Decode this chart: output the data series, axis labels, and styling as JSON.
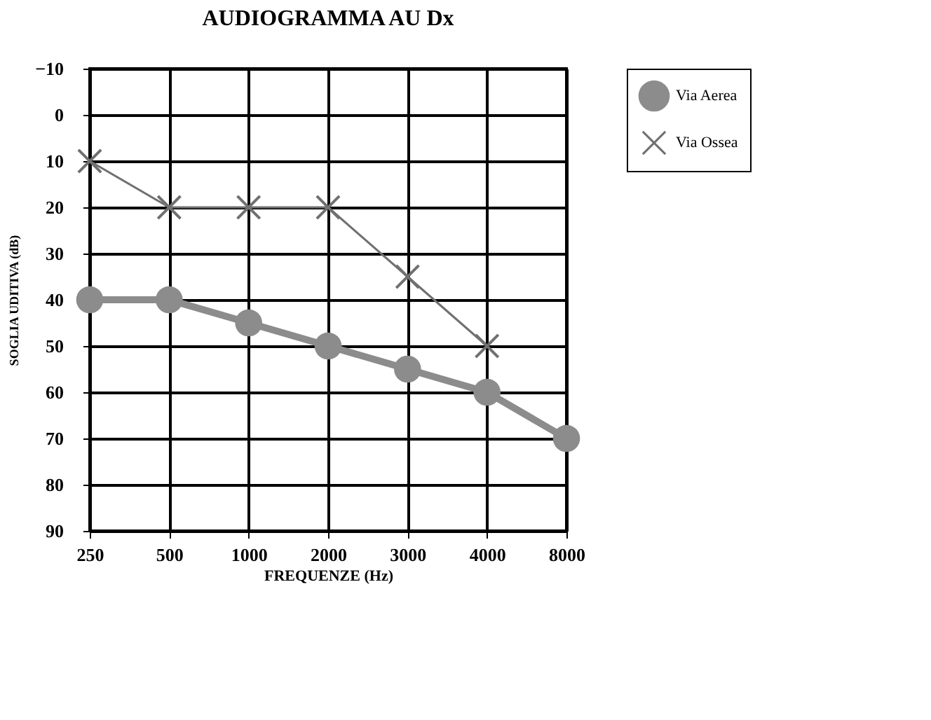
{
  "chart_data": {
    "type": "line",
    "title": "AUDIOGRAMMA AU Dx",
    "xlabel": "FREQUENZE (Hz)",
    "ylabel": "SOGLIA UDITIVA (dB)",
    "categories": [
      "250",
      "500",
      "1000",
      "2000",
      "3000",
      "4000",
      "8000"
    ],
    "series": [
      {
        "name": "Via Aerea",
        "color": "#8c8c8c",
        "marker": "circle",
        "values": [
          40,
          40,
          45,
          50,
          55,
          60,
          70
        ]
      },
      {
        "name": "Via Ossea",
        "color": "#707070",
        "marker": "cross",
        "values": [
          10,
          20,
          20,
          20,
          35,
          50,
          null
        ]
      }
    ],
    "ylim": [
      90,
      -10
    ],
    "yticks": [
      -10,
      0,
      10,
      20,
      30,
      40,
      50,
      60,
      70,
      80,
      90
    ],
    "grid": true,
    "legend": "right"
  }
}
